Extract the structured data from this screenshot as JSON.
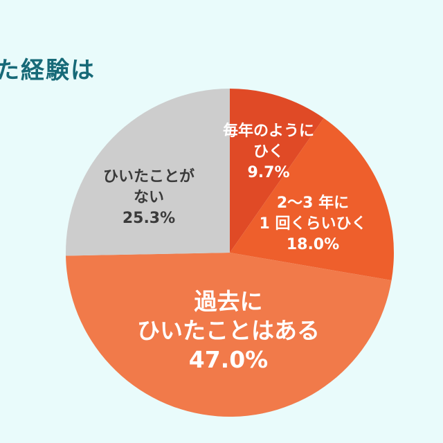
{
  "title": "た経験は",
  "colors": {
    "background": "#e9fbfb",
    "title": "#176a78"
  },
  "chart_data": {
    "type": "pie",
    "start_angle_deg": 0,
    "direction": "clockwise",
    "slices": [
      {
        "label_lines": [
          "毎年のように",
          "ひく"
        ],
        "value": 9.7,
        "value_label": "9.7%",
        "color": "#e04a26",
        "label_color": "#ffffff"
      },
      {
        "label_lines": [
          "2〜3 年に",
          "1 回くらいひく"
        ],
        "value": 18.0,
        "value_label": "18.0%",
        "color": "#ee5f2c",
        "label_color": "#ffffff"
      },
      {
        "label_lines": [
          "過去に",
          "ひいたことはある"
        ],
        "value": 47.0,
        "value_label": "47.0%",
        "color": "#f17a4a",
        "label_color": "#ffffff"
      },
      {
        "label_lines": [
          "ひいたことが",
          "ない"
        ],
        "value": 25.3,
        "value_label": "25.3%",
        "color": "#cdcdcd",
        "label_color": "#3a3a3a"
      }
    ]
  }
}
